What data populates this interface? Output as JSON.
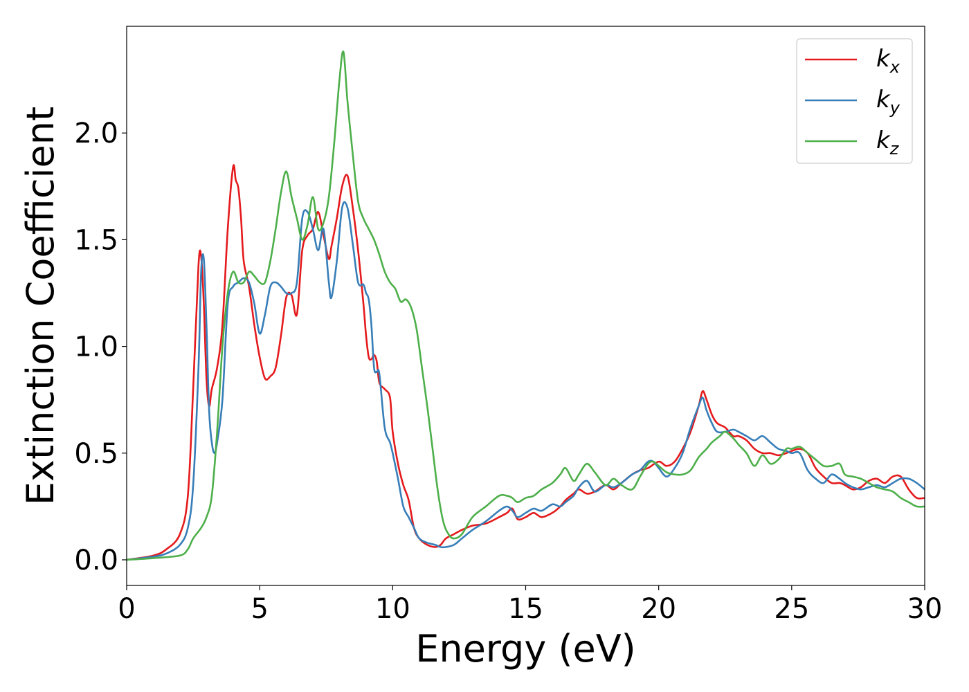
{
  "chart_data": {
    "type": "line",
    "title": "",
    "xlabel": "Energy (eV)",
    "ylabel": "Extinction Coefficient",
    "xlim": [
      0,
      30
    ],
    "ylim": [
      -0.12,
      2.5
    ],
    "xticks": [
      0,
      5,
      10,
      15,
      20,
      25,
      30
    ],
    "xtick_labels": [
      "0",
      "5",
      "10",
      "15",
      "20",
      "25",
      "30"
    ],
    "yticks": [
      0.0,
      0.5,
      1.0,
      1.5,
      2.0
    ],
    "ytick_labels": [
      "0.0",
      "0.5",
      "1.0",
      "1.5",
      "2.0"
    ],
    "grid": false,
    "legend_position": "top-right",
    "series": [
      {
        "name": "k_x",
        "label_base": "k",
        "label_sub": "x",
        "color": "#e41a1c",
        "x": [
          0,
          1,
          1.5,
          2,
          2.3,
          2.5,
          2.7,
          2.8,
          2.9,
          3.0,
          3.1,
          3.2,
          3.4,
          3.6,
          3.8,
          4.0,
          4.1,
          4.2,
          4.3,
          4.4,
          4.6,
          4.8,
          5.0,
          5.2,
          5.4,
          5.6,
          5.8,
          6.0,
          6.2,
          6.4,
          6.6,
          6.8,
          7.0,
          7.2,
          7.4,
          7.6,
          7.7,
          7.9,
          8.1,
          8.3,
          8.5,
          8.7,
          8.9,
          9.0,
          9.1,
          9.2,
          9.3,
          9.4,
          9.5,
          9.7,
          9.9,
          10.0,
          10.2,
          10.4,
          10.6,
          10.8,
          11.0,
          11.3,
          11.6,
          11.8,
          12.0,
          12.3,
          12.6,
          13.0,
          13.5,
          14.0,
          14.3,
          14.5,
          14.7,
          15.0,
          15.3,
          15.6,
          16.0,
          16.3,
          16.5,
          16.8,
          17.0,
          17.3,
          17.6,
          18.0,
          18.3,
          18.6,
          19.0,
          19.3,
          19.6,
          20.0,
          20.3,
          20.6,
          20.9,
          21.2,
          21.5,
          21.65,
          21.8,
          22.0,
          22.2,
          22.5,
          22.8,
          23.0,
          23.3,
          23.6,
          23.9,
          24.2,
          24.5,
          24.8,
          25.0,
          25.3,
          25.6,
          25.9,
          26.2,
          26.5,
          26.8,
          27.0,
          27.3,
          27.6,
          27.9,
          28.2,
          28.5,
          28.8,
          29.1,
          29.4,
          29.7,
          30.0
        ],
        "y": [
          0.0,
          0.02,
          0.05,
          0.12,
          0.3,
          0.8,
          1.38,
          1.42,
          1.2,
          0.85,
          0.72,
          0.8,
          0.9,
          1.1,
          1.55,
          1.84,
          1.78,
          1.74,
          1.6,
          1.4,
          1.28,
          1.1,
          0.95,
          0.85,
          0.86,
          0.9,
          1.05,
          1.23,
          1.24,
          1.15,
          1.45,
          1.52,
          1.55,
          1.63,
          1.52,
          1.41,
          1.47,
          1.6,
          1.75,
          1.8,
          1.65,
          1.45,
          1.2,
          1.05,
          0.95,
          0.94,
          0.96,
          0.93,
          0.83,
          0.8,
          0.76,
          0.6,
          0.45,
          0.35,
          0.28,
          0.15,
          0.1,
          0.07,
          0.06,
          0.07,
          0.1,
          0.12,
          0.14,
          0.16,
          0.17,
          0.2,
          0.22,
          0.24,
          0.19,
          0.2,
          0.22,
          0.2,
          0.22,
          0.25,
          0.28,
          0.31,
          0.33,
          0.31,
          0.32,
          0.35,
          0.33,
          0.36,
          0.4,
          0.42,
          0.43,
          0.46,
          0.44,
          0.46,
          0.52,
          0.6,
          0.72,
          0.79,
          0.75,
          0.68,
          0.64,
          0.62,
          0.58,
          0.58,
          0.56,
          0.52,
          0.5,
          0.5,
          0.49,
          0.5,
          0.51,
          0.52,
          0.5,
          0.43,
          0.39,
          0.36,
          0.36,
          0.35,
          0.33,
          0.34,
          0.37,
          0.38,
          0.36,
          0.39,
          0.39,
          0.33,
          0.29,
          0.29
        ]
      },
      {
        "name": "k_y",
        "label_base": "k",
        "label_sub": "y",
        "color": "#377eb8",
        "x": [
          0,
          1,
          1.5,
          2,
          2.3,
          2.5,
          2.7,
          2.8,
          2.9,
          3.0,
          3.1,
          3.2,
          3.3,
          3.4,
          3.6,
          3.8,
          4.0,
          4.2,
          4.4,
          4.6,
          4.8,
          5.0,
          5.2,
          5.4,
          5.6,
          5.8,
          6.0,
          6.2,
          6.4,
          6.6,
          6.8,
          7.0,
          7.2,
          7.4,
          7.6,
          7.7,
          7.9,
          8.1,
          8.3,
          8.5,
          8.7,
          8.9,
          9.0,
          9.1,
          9.2,
          9.3,
          9.4,
          9.5,
          9.7,
          9.9,
          10.0,
          10.2,
          10.4,
          10.6,
          10.8,
          11.0,
          11.3,
          11.6,
          11.8,
          12.0,
          12.3,
          12.6,
          13.0,
          13.5,
          14.0,
          14.3,
          14.5,
          14.7,
          15.0,
          15.3,
          15.6,
          16.0,
          16.3,
          16.5,
          16.8,
          17.0,
          17.3,
          17.6,
          18.0,
          18.3,
          18.6,
          19.0,
          19.3,
          19.6,
          19.8,
          20.0,
          20.3,
          20.6,
          20.9,
          21.2,
          21.5,
          21.65,
          21.8,
          22.0,
          22.2,
          22.5,
          22.8,
          23.0,
          23.3,
          23.6,
          23.9,
          24.2,
          24.5,
          24.8,
          25.0,
          25.3,
          25.6,
          25.9,
          26.2,
          26.5,
          26.8,
          27.0,
          27.3,
          27.6,
          27.9,
          28.2,
          28.5,
          28.8,
          29.1,
          29.4,
          29.7,
          30.0
        ],
        "y": [
          0.0,
          0.015,
          0.03,
          0.07,
          0.15,
          0.35,
          0.9,
          1.35,
          1.41,
          1.1,
          0.7,
          0.55,
          0.5,
          0.55,
          0.75,
          1.2,
          1.28,
          1.3,
          1.32,
          1.3,
          1.2,
          1.06,
          1.15,
          1.28,
          1.3,
          1.28,
          1.25,
          1.25,
          1.3,
          1.6,
          1.63,
          1.55,
          1.45,
          1.55,
          1.3,
          1.23,
          1.4,
          1.65,
          1.65,
          1.48,
          1.3,
          1.29,
          1.25,
          1.22,
          1.1,
          0.9,
          0.88,
          0.87,
          0.62,
          0.55,
          0.5,
          0.38,
          0.25,
          0.2,
          0.15,
          0.1,
          0.08,
          0.07,
          0.06,
          0.06,
          0.07,
          0.1,
          0.14,
          0.18,
          0.23,
          0.25,
          0.23,
          0.2,
          0.22,
          0.24,
          0.23,
          0.26,
          0.25,
          0.27,
          0.3,
          0.34,
          0.37,
          0.32,
          0.35,
          0.34,
          0.36,
          0.4,
          0.42,
          0.46,
          0.46,
          0.43,
          0.39,
          0.43,
          0.5,
          0.62,
          0.72,
          0.76,
          0.7,
          0.64,
          0.6,
          0.6,
          0.61,
          0.6,
          0.58,
          0.56,
          0.58,
          0.55,
          0.52,
          0.51,
          0.5,
          0.5,
          0.42,
          0.38,
          0.36,
          0.4,
          0.38,
          0.36,
          0.34,
          0.33,
          0.34,
          0.35,
          0.34,
          0.36,
          0.38,
          0.38,
          0.36,
          0.33
        ]
      },
      {
        "name": "k_z",
        "label_base": "k",
        "label_sub": "z",
        "color": "#4daf4a",
        "x": [
          0,
          1,
          2,
          2.3,
          2.5,
          2.8,
          3.0,
          3.2,
          3.4,
          3.6,
          3.8,
          4.0,
          4.2,
          4.4,
          4.6,
          4.8,
          5.0,
          5.2,
          5.4,
          5.6,
          5.8,
          6.0,
          6.2,
          6.4,
          6.6,
          6.8,
          7.0,
          7.2,
          7.4,
          7.6,
          7.8,
          8.0,
          8.15,
          8.3,
          8.5,
          8.7,
          8.9,
          9.1,
          9.3,
          9.5,
          9.7,
          9.9,
          10.1,
          10.3,
          10.5,
          10.7,
          10.9,
          11.1,
          11.3,
          11.5,
          11.7,
          11.9,
          12.1,
          12.3,
          12.6,
          13.0,
          13.5,
          14.0,
          14.3,
          14.5,
          14.7,
          15.0,
          15.3,
          15.6,
          16.0,
          16.3,
          16.5,
          16.8,
          17.0,
          17.3,
          17.6,
          18.0,
          18.3,
          18.6,
          19.0,
          19.3,
          19.6,
          19.8,
          20.0,
          20.3,
          20.6,
          20.9,
          21.2,
          21.5,
          21.8,
          22.0,
          22.3,
          22.5,
          22.8,
          23.0,
          23.3,
          23.6,
          23.9,
          24.2,
          24.5,
          24.8,
          25.0,
          25.3,
          25.6,
          25.9,
          26.2,
          26.5,
          26.8,
          27.0,
          27.3,
          27.6,
          27.9,
          28.2,
          28.5,
          28.8,
          29.1,
          29.4,
          29.7,
          30.0
        ],
        "y": [
          0.0,
          0.008,
          0.02,
          0.05,
          0.1,
          0.15,
          0.2,
          0.3,
          0.6,
          1.0,
          1.25,
          1.35,
          1.3,
          1.3,
          1.35,
          1.33,
          1.3,
          1.3,
          1.4,
          1.55,
          1.72,
          1.82,
          1.7,
          1.6,
          1.5,
          1.57,
          1.7,
          1.55,
          1.58,
          1.7,
          1.95,
          2.25,
          2.38,
          2.15,
          1.9,
          1.68,
          1.6,
          1.55,
          1.5,
          1.43,
          1.35,
          1.3,
          1.27,
          1.21,
          1.22,
          1.18,
          1.08,
          0.9,
          0.72,
          0.52,
          0.32,
          0.18,
          0.12,
          0.1,
          0.12,
          0.2,
          0.25,
          0.3,
          0.3,
          0.29,
          0.27,
          0.29,
          0.3,
          0.33,
          0.36,
          0.4,
          0.43,
          0.37,
          0.4,
          0.45,
          0.41,
          0.35,
          0.38,
          0.35,
          0.33,
          0.39,
          0.45,
          0.46,
          0.44,
          0.41,
          0.4,
          0.4,
          0.42,
          0.48,
          0.52,
          0.55,
          0.58,
          0.6,
          0.57,
          0.54,
          0.5,
          0.44,
          0.49,
          0.45,
          0.47,
          0.52,
          0.52,
          0.53,
          0.5,
          0.47,
          0.44,
          0.44,
          0.45,
          0.4,
          0.39,
          0.38,
          0.36,
          0.34,
          0.33,
          0.32,
          0.29,
          0.27,
          0.25,
          0.25
        ]
      }
    ]
  }
}
